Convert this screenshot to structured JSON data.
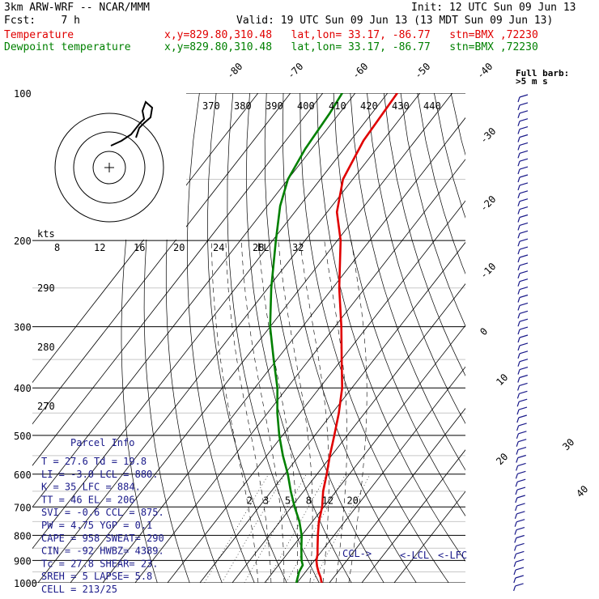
{
  "header": {
    "model": "3km ARW-WRF -- NCAR/MMM",
    "init": "Init: 12 UTC Sun 09 Jun 13",
    "fcst": "Fcst:    7 h",
    "valid": "Valid: 19 UTC Sun 09 Jun 13 (13 MDT Sun 09 Jun 13)",
    "temp_label": "Temperature",
    "temp_loc": "x,y=829.80,310.48   lat,lon= 33.17, -86.77   stn=BMX ,72230",
    "dew_label": "Dewpoint temperature",
    "dew_loc": "x,y=829.80,310.48   lat,lon= 33.17, -86.77   stn=BMX ,72230"
  },
  "colors": {
    "temperature": "#e00000",
    "dewpoint": "#008000",
    "parcel_text": "#1a1a8a",
    "barbs": "#1a1a8a"
  },
  "chart_data": {
    "type": "line",
    "pressure_levels": [
      100,
      200,
      300,
      400,
      500,
      600,
      700,
      800,
      900,
      1000
    ],
    "pressure_labels": [
      "100",
      "200",
      "300",
      "400",
      "500",
      "600",
      "700",
      "800",
      "900",
      "1000"
    ],
    "isotherm_labels": [
      "-80",
      "-70",
      "-60",
      "-50",
      "-40",
      "-30",
      "-20",
      "-10",
      "0",
      "10",
      "20",
      "30",
      "40"
    ],
    "theta_top_labels": [
      "370",
      "380",
      "390",
      "400",
      "410",
      "420",
      "430",
      "440"
    ],
    "dry_adiabat_labels": [
      "290",
      "280",
      "270"
    ],
    "hodograph_speed_labels": [
      "8",
      "12",
      "16",
      "20",
      "24",
      "28",
      "32"
    ],
    "mixing_ratio_labels": [
      "2",
      "3",
      "5",
      "8",
      "12",
      "20"
    ],
    "kts_label": "kts",
    "full_barb": "Full barb:",
    "full_barb_unit": ">5 m s",
    "level_markers": {
      "el": "EL",
      "ccl": "CCL",
      "lcl": "LCL",
      "lfc": "LFC"
    },
    "series": [
      {
        "name": "Temperature",
        "points": [
          [
            1000,
            27.6
          ],
          [
            975,
            26
          ],
          [
            950,
            24
          ],
          [
            925,
            22.2
          ],
          [
            900,
            20.6
          ],
          [
            875,
            19.5
          ],
          [
            850,
            18
          ],
          [
            800,
            15
          ],
          [
            750,
            12
          ],
          [
            700,
            9.5
          ],
          [
            650,
            6
          ],
          [
            600,
            3
          ],
          [
            550,
            -0.5
          ],
          [
            500,
            -4
          ],
          [
            450,
            -8
          ],
          [
            400,
            -13
          ],
          [
            350,
            -20
          ],
          [
            300,
            -28
          ],
          [
            250,
            -38
          ],
          [
            200,
            -49
          ],
          [
            175,
            -57
          ],
          [
            150,
            -63
          ],
          [
            125,
            -66
          ],
          [
            100,
            -67
          ]
        ]
      },
      {
        "name": "Dewpoint temperature",
        "points": [
          [
            1000,
            19.8
          ],
          [
            950,
            18
          ],
          [
            920,
            17.5
          ],
          [
            900,
            16
          ],
          [
            850,
            13
          ],
          [
            800,
            10
          ],
          [
            750,
            6
          ],
          [
            700,
            1
          ],
          [
            650,
            -4
          ],
          [
            600,
            -9
          ],
          [
            550,
            -15
          ],
          [
            500,
            -21
          ],
          [
            450,
            -27
          ],
          [
            400,
            -33
          ],
          [
            350,
            -41
          ],
          [
            300,
            -50
          ],
          [
            250,
            -59
          ],
          [
            200,
            -69
          ],
          [
            170,
            -76
          ],
          [
            150,
            -80
          ],
          [
            130,
            -82
          ],
          [
            110,
            -83
          ],
          [
            100,
            -84
          ]
        ]
      }
    ]
  },
  "parcel": {
    "title": "Parcel Info",
    "lines": [
      "T  =   27.6 Td =  19.8",
      "LI =   -3.0 LCL =  880.",
      "K  =     35 LFC =  884.",
      "TT =     46 EL  =  206",
      "SVI =  -0.6 CCL =  875.",
      "PW =   4.75 YGP =   0.1",
      "CAPE =  958 SWEAT=  290",
      "CIN =   -92 HWBZ= 4389.",
      "Tc =   27.8 SHEAR=  23.",
      "SREH =    5 LAPSE=  5.8",
      "CELL = 213/25"
    ]
  }
}
